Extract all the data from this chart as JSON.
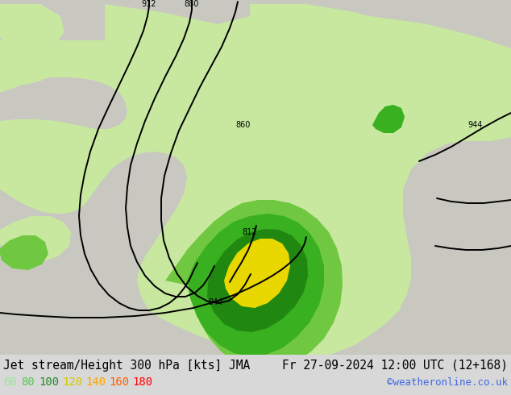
{
  "title_left": "Jet stream/Height 300 hPa [kts] JMA",
  "title_right": "Fr 27-09-2024 12:00 UTC (12+168)",
  "watermark": "©weatheronline.co.uk",
  "legend_values": [
    "60",
    "80",
    "100",
    "120",
    "140",
    "160",
    "180"
  ],
  "legend_colors": [
    "#90ee90",
    "#50c850",
    "#228b22",
    "#d4c800",
    "#ffa500",
    "#ff6000",
    "#ff0000"
  ],
  "bg_color": "#d8d8d8",
  "ocean_color": "#e8e8e8",
  "land_color": "#d4d4d4",
  "title_fontsize": 10.5,
  "legend_fontsize": 10,
  "watermark_color": "#4169e1",
  "contour_color": "#000000",
  "contour_lw": 1.4
}
